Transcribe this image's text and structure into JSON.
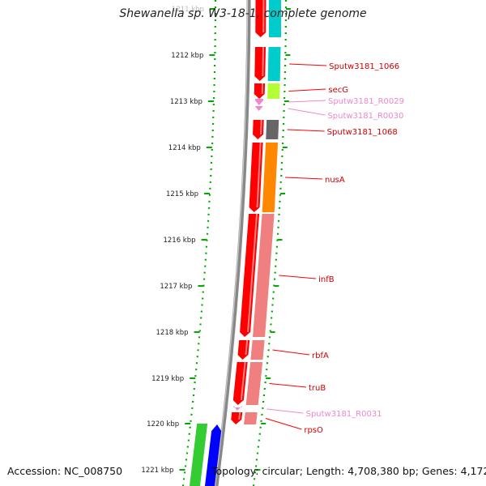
{
  "title": "Shewanella sp. W3-18-1, complete genome",
  "footer": {
    "accession_label": "Accession:",
    "accession": "NC_008750",
    "topology_label": "Topology:",
    "topology": "circular",
    "length_label": "Length:",
    "length": "4,708,380 bp",
    "genes_label": "Genes:",
    "genes": "4,172"
  },
  "ticks": [
    "1211 kbp",
    "1212 kbp",
    "1213 kbp",
    "1214 kbp",
    "1215 kbp",
    "1216 kbp",
    "1217 kbp",
    "1218 kbp",
    "1219 kbp",
    "1220 kbp",
    "1221 kbp"
  ],
  "genes": [
    {
      "name": "Sputw3181_1066",
      "color": "#cc0000",
      "class_color": "#00cccc"
    },
    {
      "name": "secG",
      "color": "#cc0000",
      "class_color": "#b3ff33"
    },
    {
      "name": "Sputw3181_R0029",
      "color": "#ee88cc",
      "class_color": ""
    },
    {
      "name": "Sputw3181_R0030",
      "color": "#ee88cc",
      "class_color": ""
    },
    {
      "name": "Sputw3181_1068",
      "color": "#cc0000",
      "class_color": "#666666"
    },
    {
      "name": "nusA",
      "color": "#cc0000",
      "class_color": "#ff8800"
    },
    {
      "name": "infB",
      "color": "#cc0000",
      "class_color": "#f08080"
    },
    {
      "name": "rbfA",
      "color": "#cc0000",
      "class_color": "#f08080"
    },
    {
      "name": "truB",
      "color": "#cc0000",
      "class_color": "#f08080"
    },
    {
      "name": "Sputw3181_R0031",
      "color": "#ee88cc",
      "class_color": ""
    },
    {
      "name": "rpsO",
      "color": "#cc0000",
      "class_color": "#f08080"
    }
  ],
  "colors": {
    "backbone": "#888888",
    "tick": "#00aa00",
    "forward_strand_red": "#ff0000",
    "rna": "#ee88cc",
    "left_green": "#33cc33",
    "left_blue": "#0000ff"
  }
}
